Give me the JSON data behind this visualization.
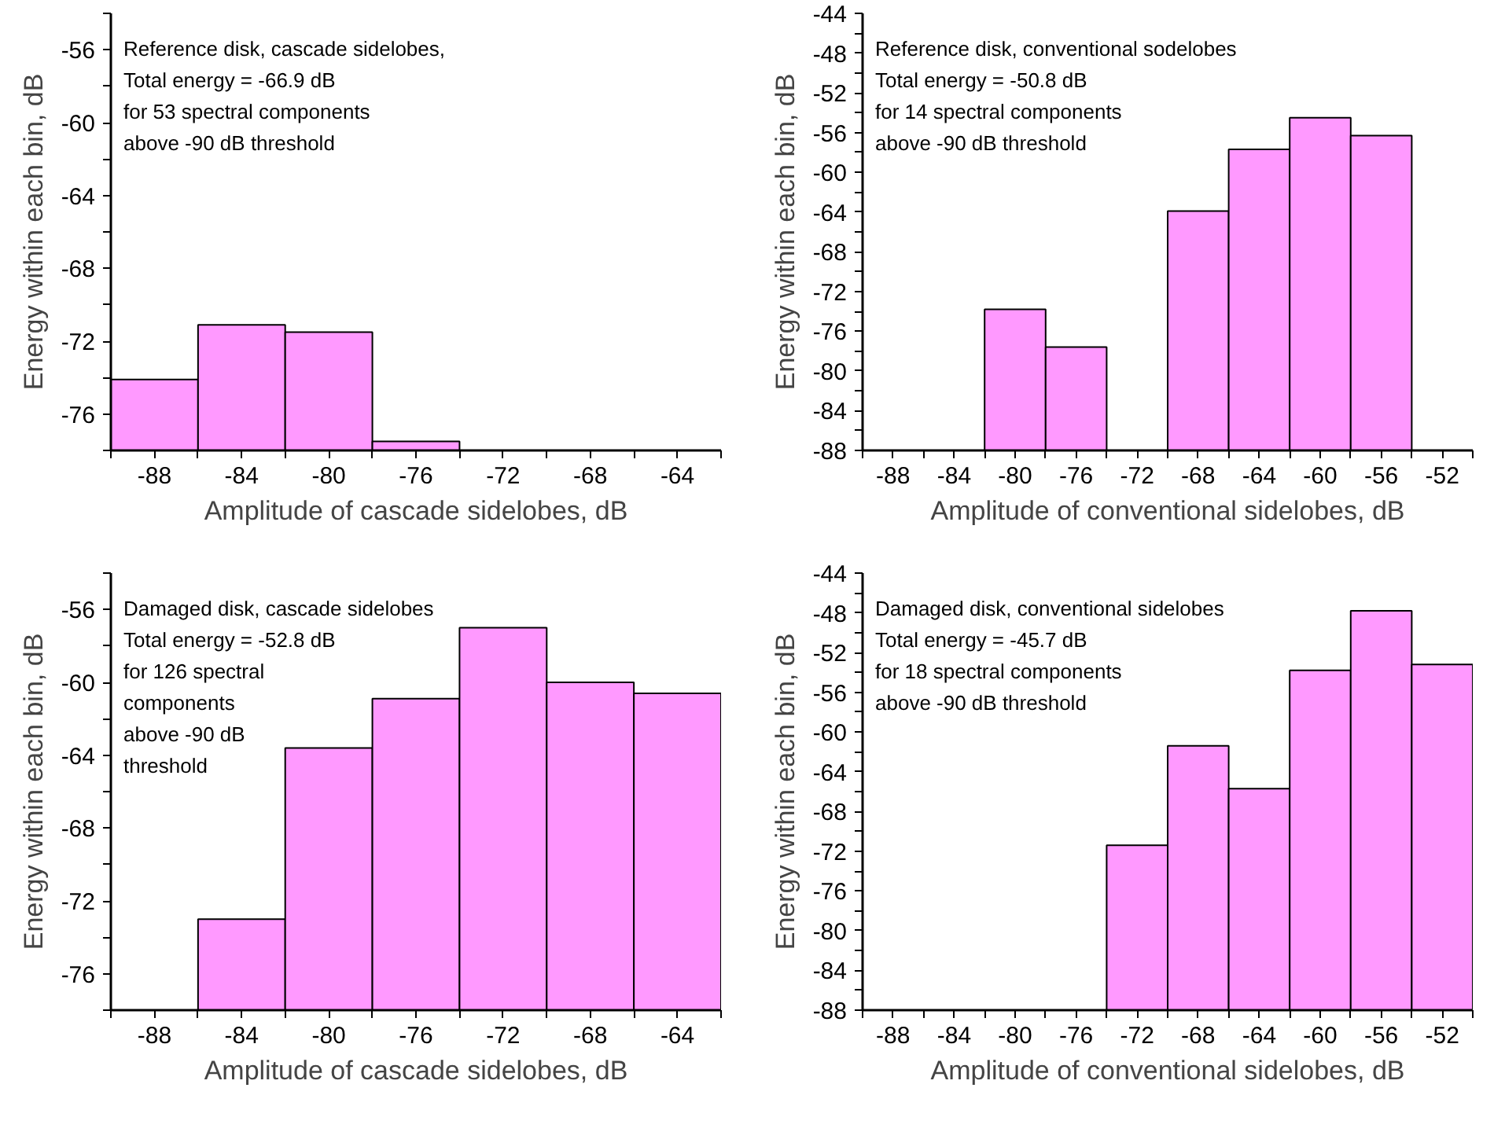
{
  "chart_data": [
    {
      "type": "bar",
      "xlabel": "Amplitude of cascade sidelobes, dB",
      "ylabel": "Energy within each bin, dB",
      "color": "#ff99ff",
      "annotations": [
        "Reference disk, cascade sidelobes,",
        "Total energy = -66.9 dB",
        "for 53 spectral components",
        "above -90 dB threshold"
      ],
      "x": [
        -88,
        -84,
        -80,
        -76
      ],
      "base": [
        -78,
        -78,
        -78,
        -78
      ],
      "values": [
        3.9,
        6.9,
        6.5,
        0.5
      ],
      "xlim": [
        -90,
        -62
      ],
      "ylim": [
        -78,
        -54
      ],
      "xticks": [
        {
          "value": -90,
          "label": null
        },
        -88,
        {
          "value": -86,
          "label": null
        },
        -84,
        {
          "value": -82,
          "label": null
        },
        -80,
        {
          "value": -78,
          "label": null
        },
        -76,
        {
          "value": -74,
          "label": null
        },
        -72,
        {
          "value": -70,
          "label": null
        },
        -68,
        {
          "value": -66,
          "label": null
        },
        -64,
        {
          "value": -62,
          "label": null
        }
      ],
      "yticks": [
        {
          "value": -78,
          "label": null
        },
        -76,
        {
          "value": -74,
          "label": null
        },
        -72,
        {
          "value": -70,
          "label": null
        },
        -68,
        {
          "value": -66,
          "label": null
        },
        -64,
        {
          "value": -62,
          "label": null
        },
        -60,
        {
          "value": -58,
          "label": null
        },
        -56,
        {
          "value": -54,
          "label": null
        }
      ]
    },
    {
      "type": "bar",
      "xlabel": "Amplitude of conventional sidelobes, dB",
      "ylabel": "Energy within each bin, dB",
      "color": "#ff99ff",
      "annotations": [
        "Reference disk, conventional sodelobes",
        "Total energy = -50.8 dB",
        "for 14 spectral components",
        "above -90 dB threshold"
      ],
      "x": [
        -80,
        -76,
        -68,
        -64,
        -60,
        -56
      ],
      "base": [
        -88,
        -88,
        -88,
        -88,
        -88,
        -88
      ],
      "values": [
        14.2,
        10.4,
        24.1,
        30.3,
        33.5,
        31.7
      ],
      "xlim": [
        -90,
        -50
      ],
      "ylim": [
        -88,
        -44
      ],
      "xticks": [
        {
          "value": -90,
          "label": null
        },
        -88,
        {
          "value": -86,
          "label": null
        },
        -84,
        {
          "value": -82,
          "label": null
        },
        -80,
        {
          "value": -78,
          "label": null
        },
        -76,
        {
          "value": -74,
          "label": null
        },
        -72,
        {
          "value": -70,
          "label": null
        },
        -68,
        {
          "value": -66,
          "label": null
        },
        -64,
        {
          "value": -62,
          "label": null
        },
        -60,
        {
          "value": -58,
          "label": null
        },
        -56,
        {
          "value": -54,
          "label": null
        },
        -52,
        {
          "value": -50,
          "label": null
        }
      ],
      "yticks": [
        -88,
        {
          "value": -86,
          "label": null
        },
        -84,
        {
          "value": -82,
          "label": null
        },
        -80,
        {
          "value": -78,
          "label": null
        },
        -76,
        {
          "value": -74,
          "label": null
        },
        -72,
        {
          "value": -70,
          "label": null
        },
        -68,
        {
          "value": -66,
          "label": null
        },
        -64,
        {
          "value": -62,
          "label": null
        },
        -60,
        {
          "value": -58,
          "label": null
        },
        -56,
        {
          "value": -54,
          "label": null
        },
        -52,
        {
          "value": -50,
          "label": null
        },
        -48,
        {
          "value": -46,
          "label": null
        },
        -44
      ]
    },
    {
      "type": "bar",
      "xlabel": "Amplitude of cascade sidelobes, dB",
      "ylabel": "Energy within each bin, dB",
      "color": "#ff99ff",
      "annotations": [
        "Damaged disk, cascade sidelobes",
        "Total energy = -52.8 dB",
        "for 126 spectral",
        "components",
        "above -90 dB",
        "threshold"
      ],
      "x": [
        -84,
        -80,
        -76,
        -72,
        -68,
        -64
      ],
      "base": [
        -78,
        -78,
        -78,
        -78,
        -78,
        -78
      ],
      "values": [
        5.0,
        14.4,
        17.1,
        21.0,
        18.0,
        17.4
      ],
      "xlim": [
        -90,
        -62
      ],
      "ylim": [
        -78,
        -54
      ],
      "xticks": [
        {
          "value": -90,
          "label": null
        },
        -88,
        {
          "value": -86,
          "label": null
        },
        -84,
        {
          "value": -82,
          "label": null
        },
        -80,
        {
          "value": -78,
          "label": null
        },
        -76,
        {
          "value": -74,
          "label": null
        },
        -72,
        {
          "value": -70,
          "label": null
        },
        -68,
        {
          "value": -66,
          "label": null
        },
        -64,
        {
          "value": -62,
          "label": null
        }
      ],
      "yticks": [
        {
          "value": -78,
          "label": null
        },
        -76,
        {
          "value": -74,
          "label": null
        },
        -72,
        {
          "value": -70,
          "label": null
        },
        -68,
        {
          "value": -66,
          "label": null
        },
        -64,
        {
          "value": -62,
          "label": null
        },
        -60,
        {
          "value": -58,
          "label": null
        },
        -56,
        {
          "value": -54,
          "label": null
        }
      ]
    },
    {
      "type": "bar",
      "xlabel": "Amplitude of conventional sidelobes, dB",
      "ylabel": "Energy within each bin, dB",
      "color": "#ff99ff",
      "annotations": [
        "Damaged disk, conventional sidelobes",
        "Total energy = -45.7 dB",
        "for 18 spectral components",
        "above -90 dB threshold"
      ],
      "x": [
        -72,
        -68,
        -64,
        -60,
        -56,
        -52
      ],
      "base": [
        -88,
        -88,
        -88,
        -88,
        -88,
        -88
      ],
      "values": [
        16.6,
        26.6,
        22.3,
        34.2,
        40.2,
        34.8
      ],
      "xlim": [
        -90,
        -50
      ],
      "ylim": [
        -88,
        -44
      ],
      "xticks": [
        {
          "value": -90,
          "label": null
        },
        -88,
        {
          "value": -86,
          "label": null
        },
        -84,
        {
          "value": -82,
          "label": null
        },
        -80,
        {
          "value": -78,
          "label": null
        },
        -76,
        {
          "value": -74,
          "label": null
        },
        -72,
        {
          "value": -70,
          "label": null
        },
        -68,
        {
          "value": -66,
          "label": null
        },
        -64,
        {
          "value": -62,
          "label": null
        },
        -60,
        {
          "value": -58,
          "label": null
        },
        -56,
        {
          "value": -54,
          "label": null
        },
        -52,
        {
          "value": -50,
          "label": null
        }
      ],
      "yticks": [
        -88,
        {
          "value": -86,
          "label": null
        },
        -84,
        {
          "value": -82,
          "label": null
        },
        -80,
        {
          "value": -78,
          "label": null
        },
        -76,
        {
          "value": -74,
          "label": null
        },
        -72,
        {
          "value": -70,
          "label": null
        },
        -68,
        {
          "value": -66,
          "label": null
        },
        -64,
        {
          "value": -62,
          "label": null
        },
        -60,
        {
          "value": -58,
          "label": null
        },
        -56,
        {
          "value": -54,
          "label": null
        },
        -52,
        {
          "value": -50,
          "label": null
        },
        -48,
        {
          "value": -46,
          "label": null
        },
        -44
      ]
    }
  ]
}
